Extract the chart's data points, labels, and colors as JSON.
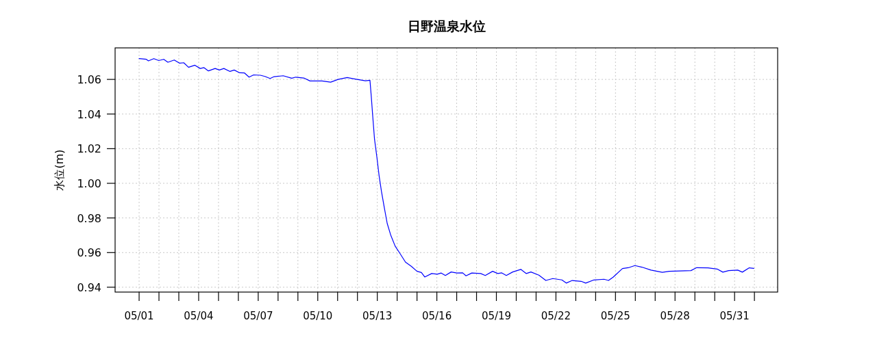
{
  "chart_data": {
    "type": "line",
    "title": "日野温泉水位",
    "ylabel": "水位(m)",
    "xlim": [
      "--04-29T18:58",
      "--06-02T04:05"
    ],
    "ylim": [
      0.9372,
      1.0782
    ],
    "xticks": [
      {
        "value": "--05-01",
        "label": "05/01"
      },
      {
        "value": "--05-02",
        "label": null
      },
      {
        "value": "--05-03",
        "label": null
      },
      {
        "value": "--05-04",
        "label": "05/04"
      },
      {
        "value": "--05-05",
        "label": null
      },
      {
        "value": "--05-06",
        "label": null
      },
      {
        "value": "--05-07",
        "label": "05/07"
      },
      {
        "value": "--05-08",
        "label": null
      },
      {
        "value": "--05-09",
        "label": null
      },
      {
        "value": "--05-10",
        "label": "05/10"
      },
      {
        "value": "--05-11",
        "label": null
      },
      {
        "value": "--05-12",
        "label": null
      },
      {
        "value": "--05-13",
        "label": "05/13"
      },
      {
        "value": "--05-14",
        "label": null
      },
      {
        "value": "--05-15",
        "label": null
      },
      {
        "value": "--05-16",
        "label": "05/16"
      },
      {
        "value": "--05-17",
        "label": null
      },
      {
        "value": "--05-18",
        "label": null
      },
      {
        "value": "--05-19",
        "label": "05/19"
      },
      {
        "value": "--05-20",
        "label": null
      },
      {
        "value": "--05-21",
        "label": null
      },
      {
        "value": "--05-22",
        "label": "05/22"
      },
      {
        "value": "--05-23",
        "label": null
      },
      {
        "value": "--05-24",
        "label": null
      },
      {
        "value": "--05-25",
        "label": "05/25"
      },
      {
        "value": "--05-26",
        "label": null
      },
      {
        "value": "--05-27",
        "label": null
      },
      {
        "value": "--05-28",
        "label": "05/28"
      },
      {
        "value": "--05-29",
        "label": null
      },
      {
        "value": "--05-30",
        "label": null
      },
      {
        "value": "--05-31",
        "label": "05/31"
      },
      {
        "value": "--06-01",
        "label": null
      }
    ],
    "yticks": [
      {
        "value": 0.94,
        "label": "0.94"
      },
      {
        "value": 0.96,
        "label": "0.96"
      },
      {
        "value": 0.98,
        "label": "0.98"
      },
      {
        "value": 1.0,
        "label": "1.00"
      },
      {
        "value": 1.02,
        "label": "1.02"
      },
      {
        "value": 1.04,
        "label": "1.04"
      },
      {
        "value": 1.06,
        "label": "1.06"
      }
    ],
    "grid": true,
    "marker": "none",
    "line_style": "solid",
    "series": [
      {
        "color": "#0000ff",
        "x": [
          "--05-01T00:00",
          "--05-01T08:38",
          "--05-01T11:17",
          "--05-01T17:46",
          "--05-01T23:46",
          "--05-02T05:46",
          "--05-02T10:48",
          "--05-02T18:29",
          "--05-03T00:43",
          "--05-03T06:00",
          "--05-03T11:46",
          "--05-03T19:12",
          "--05-04T01:55",
          "--05-04T06:14",
          "--05-04T11:46",
          "--05-04T19:55",
          "--05-05T00:58",
          "--05-05T06:29",
          "--05-05T13:55",
          "--05-05T18:58",
          "--05-06T01:41",
          "--05-06T07:26",
          "--05-06T12:58",
          "--05-06T18:29",
          "--05-07T02:38",
          "--05-07T08:10",
          "--05-07T14:24",
          "--05-07T19:12",
          "--05-08T06:14",
          "--05-08T16:34",
          "--05-08T21:22",
          "--05-09T07:12",
          "--05-09T14:38",
          "--05-10T05:17",
          "--05-10T15:36",
          "--05-11T00:29",
          "--05-11T11:31",
          "--05-11T22:34",
          "--05-12T09:36",
          "--05-12T15:07",
          "--05-12T16:48",
          "--05-12T18:29",
          "--05-12T20:38",
          "--05-12T23:31",
          "--05-13T02:10",
          "--05-13T05:02",
          "--05-13T08:24",
          "--05-13T12:00",
          "--05-13T16:05",
          "--05-13T21:36",
          "--05-14T03:07",
          "--05-14T10:05",
          "--05-14T17:02",
          "--05-15T00:00",
          "--05-15T05:17",
          "--05-15T09:22",
          "--05-15T17:46",
          "--05-16T00:29",
          "--05-16T05:17",
          "--05-16T10:19",
          "--05-16T17:17",
          "--05-17T00:14",
          "--05-17T07:12",
          "--05-17T11:17",
          "--05-17T18:14",
          "--05-18T05:02",
          "--05-18T10:34",
          "--05-18T19:26",
          "--05-19T01:41",
          "--05-19T06:29",
          "--05-19T12:00",
          "--05-19T19:41",
          "--05-20T05:31",
          "--05-20T12:14",
          "--05-20T17:46",
          "--05-21T03:22",
          "--05-21T11:46",
          "--05-21T20:10",
          "--05-22T07:12",
          "--05-22T12:29",
          "--05-22T19:41",
          "--05-23T06:29",
          "--05-23T12:00",
          "--05-23T21:50",
          "--05-24T10:05",
          "--05-24T15:36",
          "--05-24T21:22",
          "--05-25T08:24",
          "--05-25T16:34",
          "--05-25T23:31",
          "--05-26T07:55",
          "--05-26T18:58",
          "--05-27T08:38",
          "--05-27T17:02",
          "--05-28T12:14",
          "--05-28T19:12",
          "--05-29T02:10",
          "--05-29T15:50",
          "--05-30T02:53",
          "--05-30T09:50",
          "--05-30T16:48",
          "--05-31T03:50",
          "--05-31T09:22",
          "--05-31T17:46",
          "--05-31T23:17"
        ],
        "values": [
          1.072,
          1.0716,
          1.0707,
          1.072,
          1.0709,
          1.0716,
          1.0699,
          1.0712,
          1.0694,
          1.0696,
          1.067,
          1.0682,
          1.0663,
          1.0668,
          1.0649,
          1.0663,
          1.0654,
          1.0663,
          1.0646,
          1.0654,
          1.0638,
          1.0637,
          1.0613,
          1.0626,
          1.0624,
          1.0617,
          1.0605,
          1.0616,
          1.0621,
          1.0607,
          1.0613,
          1.0608,
          1.0591,
          1.0591,
          1.0584,
          1.06,
          1.0611,
          1.0601,
          1.0592,
          1.0595,
          1.0496,
          1.0387,
          1.0255,
          1.015,
          1.0044,
          0.9953,
          0.9861,
          0.9768,
          0.9703,
          0.9637,
          0.9597,
          0.9545,
          0.9521,
          0.9492,
          0.9485,
          0.9459,
          0.9479,
          0.9475,
          0.9482,
          0.9468,
          0.9488,
          0.9482,
          0.9483,
          0.9466,
          0.9482,
          0.9479,
          0.9468,
          0.9492,
          0.9479,
          0.9483,
          0.9468,
          0.9488,
          0.9503,
          0.9479,
          0.9488,
          0.947,
          0.9439,
          0.945,
          0.9442,
          0.9424,
          0.9439,
          0.9434,
          0.9424,
          0.9442,
          0.9446,
          0.9439,
          0.9459,
          0.9508,
          0.9514,
          0.9525,
          0.9516,
          0.9499,
          0.9486,
          0.9492,
          0.9495,
          0.9496,
          0.9513,
          0.9512,
          0.9505,
          0.9487,
          0.9496,
          0.9499,
          0.9487,
          0.9512,
          0.9509
        ]
      }
    ]
  }
}
